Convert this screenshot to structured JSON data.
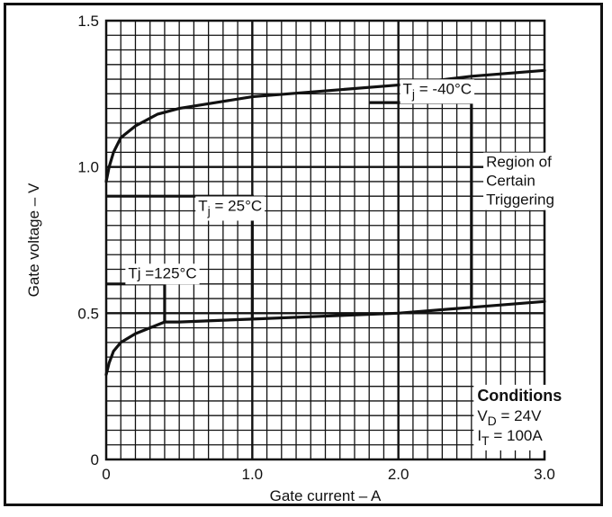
{
  "chart_data": {
    "type": "line",
    "xlabel": "Gate current – A",
    "ylabel": "Gate voltage – V",
    "xlim": [
      0,
      3.0
    ],
    "ylim": [
      0,
      1.5
    ],
    "x_ticks": [
      {
        "value": 0,
        "label": "0"
      },
      {
        "value": 1.0,
        "label": "1.0"
      },
      {
        "value": 2.0,
        "label": "2.0"
      },
      {
        "value": 3.0,
        "label": "3.0"
      }
    ],
    "y_ticks": [
      {
        "value": 0,
        "label": "0"
      },
      {
        "value": 0.5,
        "label": "0.5"
      },
      {
        "value": 1.0,
        "label": "1.0"
      },
      {
        "value": 1.5,
        "label": "1.5"
      }
    ],
    "grid": true,
    "grid_minor_step_x": 0.1,
    "grid_minor_step_y": 0.05,
    "series": [
      {
        "x": [
          0,
          0.02,
          0.05,
          0.1,
          0.2,
          0.35,
          0.5,
          0.75,
          1.0,
          1.5,
          2.0,
          2.5,
          3.0
        ],
        "y": [
          0.95,
          1.0,
          1.05,
          1.1,
          1.14,
          1.18,
          1.2,
          1.22,
          1.24,
          1.26,
          1.28,
          1.31,
          1.33
        ]
      },
      {
        "x": [
          0,
          0.02,
          0.05,
          0.1,
          0.2,
          0.3,
          0.4,
          0.5,
          1.0,
          1.5,
          2.0,
          2.5,
          3.0
        ],
        "y": [
          0.29,
          0.33,
          0.37,
          0.4,
          0.43,
          0.45,
          0.47,
          0.47,
          0.48,
          0.49,
          0.5,
          0.52,
          0.54
        ]
      }
    ],
    "region_boundaries": [
      {
        "name": "Tj = -40°C",
        "points": [
          [
            1.8,
            1.22
          ],
          [
            2.5,
            1.22
          ],
          [
            2.5,
            0.52
          ]
        ]
      },
      {
        "name": "Tj = 25°C",
        "points": [
          [
            0,
            0.9
          ],
          [
            1.0,
            0.9
          ],
          [
            1.0,
            0.48
          ]
        ]
      },
      {
        "name": "Tj = 125°C",
        "points": [
          [
            0,
            0.6
          ],
          [
            0.4,
            0.6
          ],
          [
            0.4,
            0.47
          ]
        ]
      }
    ],
    "annotations": [
      {
        "text": "Tj = -40°C",
        "main": "T",
        "sub": "j",
        "rest": " = -40°C",
        "x": 2.03,
        "y": 1.25
      },
      {
        "text": "Tj = 25°C",
        "main": "T",
        "sub": "j",
        "rest": " = 25°C",
        "x": 0.63,
        "y": 0.85
      },
      {
        "text": "Tj = 125°C",
        "main": "Tj",
        "sub": "",
        "rest": " =125°C",
        "x": 0.15,
        "y": 0.62
      },
      {
        "text": "Region of Certain Triggering",
        "lines": [
          "Region of",
          "Certain",
          "Triggering"
        ],
        "x": 2.6,
        "y": 1.0
      }
    ],
    "conditions": {
      "title": "Conditions",
      "lines": [
        {
          "main": "V",
          "sub": "D",
          "rest": " = 24V"
        },
        {
          "main": "I",
          "sub": "T",
          "rest": " = 100A"
        }
      ]
    }
  }
}
